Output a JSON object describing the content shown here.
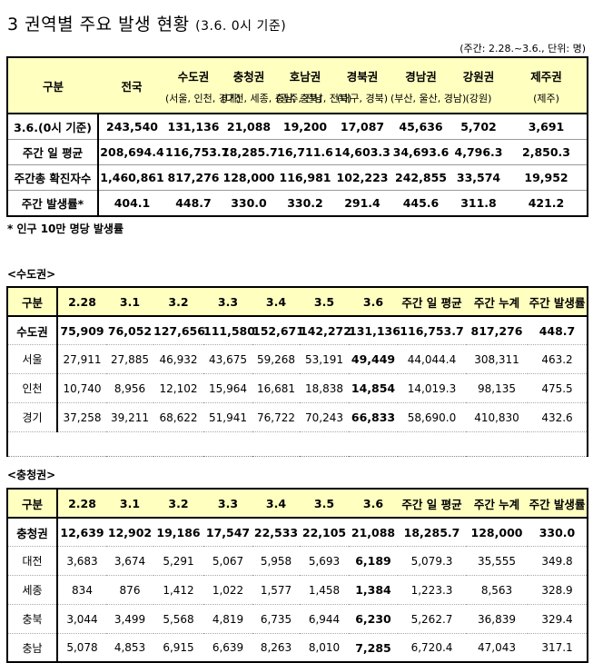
{
  "title": {
    "main": "3 권역별 주요 발생 현황",
    "basis": "(3.6. 0시 기준)"
  },
  "unit_note": "(주간: 2.28.~3.6., 단위: 명)",
  "summary": {
    "headers": [
      {
        "name": "구분",
        "sub": ""
      },
      {
        "name": "전국",
        "sub": ""
      },
      {
        "name": "수도권",
        "sub": "(서울, 인천, 경기)"
      },
      {
        "name": "충청권",
        "sub": "(대전, 세종, 충남, 충북)"
      },
      {
        "name": "호남권",
        "sub": "(광주, 전남, 전북)"
      },
      {
        "name": "경북권",
        "sub": "(대구, 경북)"
      },
      {
        "name": "경남권",
        "sub": "(부산, 울산, 경남)"
      },
      {
        "name": "강원권",
        "sub": "(강원)"
      },
      {
        "name": "제주권",
        "sub": "(제주)"
      }
    ],
    "rows": [
      [
        "3.6.(0시 기준)",
        "243,540",
        "131,136",
        "21,088",
        "19,200",
        "17,087",
        "45,636",
        "5,702",
        "3,691"
      ],
      [
        "주간 일 평균",
        "208,694.4",
        "116,753.7",
        "18,285.7",
        "16,711.6",
        "14,603.3",
        "34,693.6",
        "4,796.3",
        "2,850.3"
      ],
      [
        "주간총 확진자수",
        "1,460,861",
        "817,276",
        "128,000",
        "116,981",
        "102,223",
        "242,855",
        "33,574",
        "19,952"
      ],
      [
        "주간 발생률*",
        "404.1",
        "448.7",
        "330.0",
        "330.2",
        "291.4",
        "445.6",
        "311.8",
        "421.2"
      ]
    ]
  },
  "footnote": "* 인구 10만 명당 발생률",
  "regions": [
    {
      "section_label": "<수도권>",
      "headers": [
        "구분",
        "2.28",
        "3.1",
        "3.2",
        "3.3",
        "3.4",
        "3.5",
        "3.6",
        "주간 일 평균",
        "주간 누계",
        "주간 발생률"
      ],
      "total": [
        "수도권",
        "75,909",
        "76,052",
        "127,656",
        "111,580",
        "152,671",
        "142,272",
        "131,136",
        "116,753.7",
        "817,276",
        "448.7"
      ],
      "rows": [
        [
          "서울",
          "27,911",
          "27,885",
          "46,932",
          "43,675",
          "59,268",
          "53,191",
          "49,449",
          "44,044.4",
          "308,311",
          "463.2"
        ],
        [
          "인천",
          "10,740",
          "8,956",
          "12,102",
          "15,964",
          "16,681",
          "18,838",
          "14,854",
          "14,019.3",
          "98,135",
          "475.5"
        ],
        [
          "경기",
          "37,258",
          "39,211",
          "68,622",
          "51,941",
          "76,722",
          "70,243",
          "66,833",
          "58,690.0",
          "410,830",
          "432.6"
        ]
      ]
    },
    {
      "section_label": "<충청권>",
      "headers": [
        "구분",
        "2.28",
        "3.1",
        "3.2",
        "3.3",
        "3.4",
        "3.5",
        "3.6",
        "주간 일 평균",
        "주간 누계",
        "주간 발생률"
      ],
      "total": [
        "충청권",
        "12,639",
        "12,902",
        "19,186",
        "17,547",
        "22,533",
        "22,105",
        "21,088",
        "18,285.7",
        "128,000",
        "330.0"
      ],
      "rows": [
        [
          "대전",
          "3,683",
          "3,674",
          "5,291",
          "5,067",
          "5,958",
          "5,693",
          "6,189",
          "5,079.3",
          "35,555",
          "349.8"
        ],
        [
          "세종",
          "834",
          "876",
          "1,412",
          "1,022",
          "1,577",
          "1,458",
          "1,384",
          "1,223.3",
          "8,563",
          "328.9"
        ],
        [
          "충북",
          "3,044",
          "3,499",
          "5,568",
          "4,819",
          "6,735",
          "6,944",
          "6,230",
          "5,262.7",
          "36,839",
          "329.4"
        ],
        [
          "충남",
          "5,078",
          "4,853",
          "6,915",
          "6,639",
          "8,263",
          "8,010",
          "7,285",
          "6,720.4",
          "47,043",
          "317.1"
        ]
      ]
    }
  ]
}
